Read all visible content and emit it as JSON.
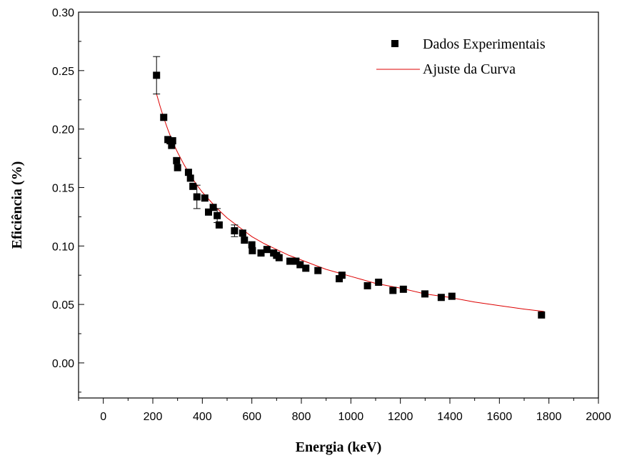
{
  "chart_data": {
    "type": "scatter",
    "title": "",
    "xlabel": "Energia (keV)",
    "ylabel": "Eficiência (%)",
    "xlim": [
      -100,
      2000
    ],
    "ylim": [
      -0.03,
      0.3
    ],
    "xticks": [
      0,
      200,
      400,
      600,
      800,
      1000,
      1200,
      1400,
      1600,
      1800,
      2000
    ],
    "yticks": [
      0.0,
      0.05,
      0.1,
      0.15,
      0.2,
      0.25,
      0.3
    ],
    "xtick_labels": [
      "0",
      "200",
      "400",
      "600",
      "800",
      "1000",
      "1200",
      "1400",
      "1600",
      "1800",
      "2000"
    ],
    "ytick_labels": [
      "0.00",
      "0.05",
      "0.10",
      "0.15",
      "0.20",
      "0.25",
      "0.30"
    ],
    "grid": false,
    "legend_position": "top-right",
    "colors": {
      "points": "#000000",
      "fit": "#dd0000",
      "axes": "#000000"
    },
    "series": [
      {
        "name": "Dados Experimentais",
        "marker": "square",
        "points": [
          {
            "x": 215,
            "y": 0.246,
            "err": 0.016
          },
          {
            "x": 244,
            "y": 0.21
          },
          {
            "x": 261,
            "y": 0.191
          },
          {
            "x": 270,
            "y": 0.19
          },
          {
            "x": 276,
            "y": 0.186
          },
          {
            "x": 280,
            "y": 0.19
          },
          {
            "x": 296,
            "y": 0.173
          },
          {
            "x": 300,
            "y": 0.167
          },
          {
            "x": 344,
            "y": 0.163
          },
          {
            "x": 352,
            "y": 0.158
          },
          {
            "x": 362,
            "y": 0.151
          },
          {
            "x": 378,
            "y": 0.142,
            "err": 0.01
          },
          {
            "x": 410,
            "y": 0.141
          },
          {
            "x": 425,
            "y": 0.129
          },
          {
            "x": 444,
            "y": 0.133
          },
          {
            "x": 460,
            "y": 0.126,
            "err": 0.006
          },
          {
            "x": 468,
            "y": 0.118
          },
          {
            "x": 530,
            "y": 0.113,
            "err": 0.005
          },
          {
            "x": 563,
            "y": 0.111
          },
          {
            "x": 570,
            "y": 0.105
          },
          {
            "x": 600,
            "y": 0.101
          },
          {
            "x": 602,
            "y": 0.096
          },
          {
            "x": 637,
            "y": 0.094
          },
          {
            "x": 661,
            "y": 0.097
          },
          {
            "x": 688,
            "y": 0.094
          },
          {
            "x": 700,
            "y": 0.092
          },
          {
            "x": 710,
            "y": 0.09
          },
          {
            "x": 754,
            "y": 0.087
          },
          {
            "x": 778,
            "y": 0.087
          },
          {
            "x": 795,
            "y": 0.084
          },
          {
            "x": 818,
            "y": 0.081
          },
          {
            "x": 867,
            "y": 0.079
          },
          {
            "x": 953,
            "y": 0.072
          },
          {
            "x": 964,
            "y": 0.075
          },
          {
            "x": 1067,
            "y": 0.066
          },
          {
            "x": 1112,
            "y": 0.069
          },
          {
            "x": 1170,
            "y": 0.062
          },
          {
            "x": 1212,
            "y": 0.063
          },
          {
            "x": 1299,
            "y": 0.059
          },
          {
            "x": 1365,
            "y": 0.056
          },
          {
            "x": 1408,
            "y": 0.057
          },
          {
            "x": 1770,
            "y": 0.041
          }
        ]
      },
      {
        "name": "Ajuste da Curva",
        "type": "line",
        "x": [
          215,
          230,
          245,
          260,
          280,
          300,
          325,
          350,
          375,
          400,
          430,
          460,
          500,
          550,
          600,
          650,
          700,
          750,
          800,
          850,
          900,
          950,
          1000,
          1100,
          1200,
          1300,
          1400,
          1500,
          1600,
          1700,
          1780
        ],
        "y": [
          0.23,
          0.219,
          0.209,
          0.2,
          0.189,
          0.18,
          0.17,
          0.161,
          0.153,
          0.146,
          0.139,
          0.132,
          0.124,
          0.116,
          0.108,
          0.102,
          0.097,
          0.092,
          0.088,
          0.084,
          0.08,
          0.077,
          0.074,
          0.068,
          0.064,
          0.059,
          0.056,
          0.052,
          0.049,
          0.046,
          0.044
        ]
      }
    ]
  }
}
